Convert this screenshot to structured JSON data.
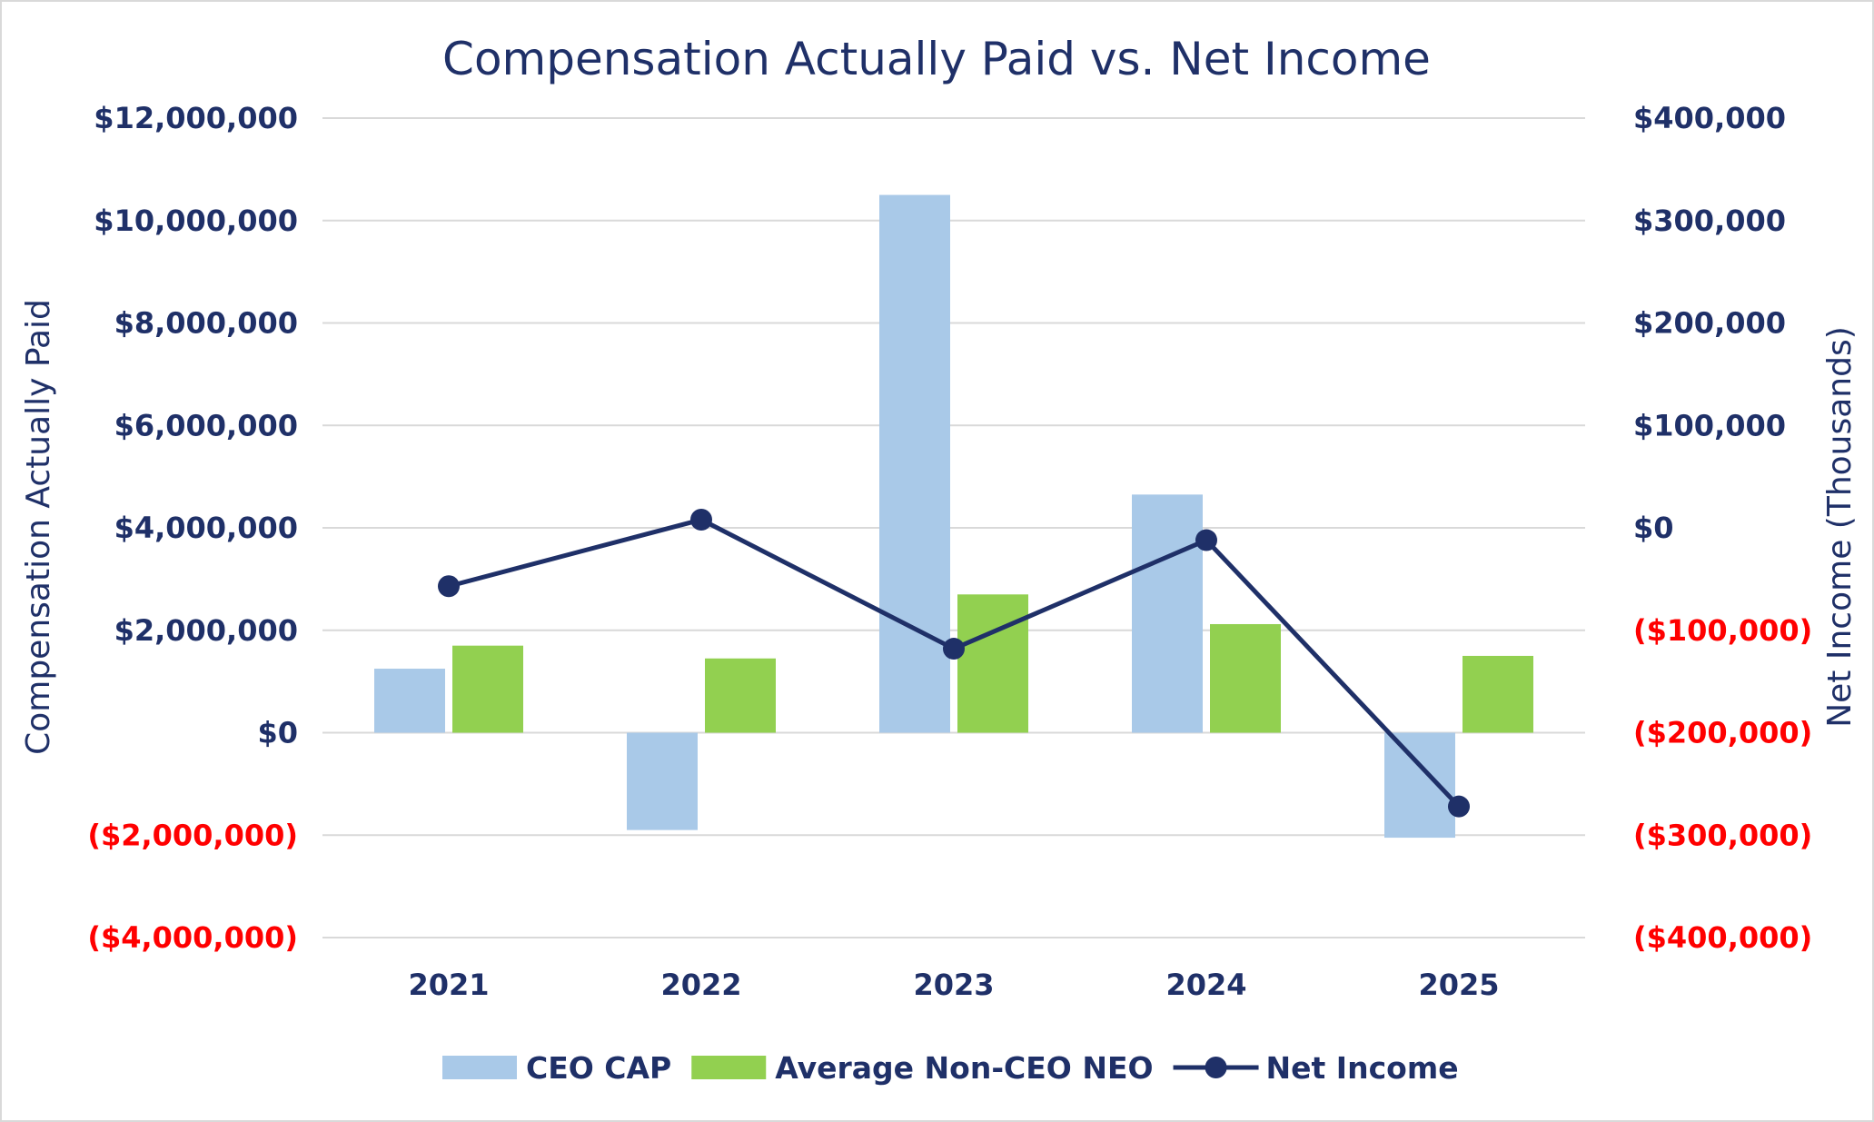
{
  "chart_data": {
    "type": "bar",
    "title": "Compensation Actually Paid vs. Net Income",
    "categories": [
      "2021",
      "2022",
      "2023",
      "2024",
      "2025"
    ],
    "ylabel": "Compensation Actually Paid",
    "y2label": "Net Income (Thousands)",
    "ylim": [
      -4000000,
      12000000
    ],
    "y2lim": [
      -400000,
      400000
    ],
    "y_ticks": [
      {
        "value": 12000000,
        "label": "$12,000,000"
      },
      {
        "value": 10000000,
        "label": "$10,000,000"
      },
      {
        "value": 8000000,
        "label": "$8,000,000"
      },
      {
        "value": 6000000,
        "label": "$6,000,000"
      },
      {
        "value": 4000000,
        "label": "$4,000,000"
      },
      {
        "value": 2000000,
        "label": "$2,000,000"
      },
      {
        "value": 0,
        "label": "$0"
      },
      {
        "value": -2000000,
        "label": "($2,000,000)"
      },
      {
        "value": -4000000,
        "label": "($4,000,000)"
      }
    ],
    "y2_ticks": [
      {
        "value": 400000,
        "label": "$400,000"
      },
      {
        "value": 300000,
        "label": "$300,000"
      },
      {
        "value": 200000,
        "label": "$200,000"
      },
      {
        "value": 100000,
        "label": "$100,000"
      },
      {
        "value": 0,
        "label": "$0"
      },
      {
        "value": -100000,
        "label": "($100,000)"
      },
      {
        "value": -200000,
        "label": "($200,000)"
      },
      {
        "value": -300000,
        "label": "($300,000)"
      },
      {
        "value": -400000,
        "label": "($400,000)"
      }
    ],
    "grid": true,
    "legend_position": "bottom",
    "series": [
      {
        "name": "CEO CAP",
        "type": "bar",
        "axis": "left",
        "color": "#a9c9e8",
        "values": [
          1250000,
          -1900000,
          10500000,
          4650000,
          -2050000
        ]
      },
      {
        "name": "Average Non-CEO NEO",
        "type": "bar",
        "axis": "left",
        "color": "#92d050",
        "values": [
          1700000,
          1450000,
          2700000,
          2120000,
          1500000
        ]
      },
      {
        "name": "Net Income",
        "type": "line",
        "axis": "right",
        "color": "#1f3068",
        "values": [
          -57000,
          8000,
          -118000,
          -12000,
          -272000
        ]
      }
    ],
    "colors": {
      "positive_tick": "#1f3068",
      "negative_tick": "#ff0000",
      "grid": "#d9d9d9"
    }
  }
}
